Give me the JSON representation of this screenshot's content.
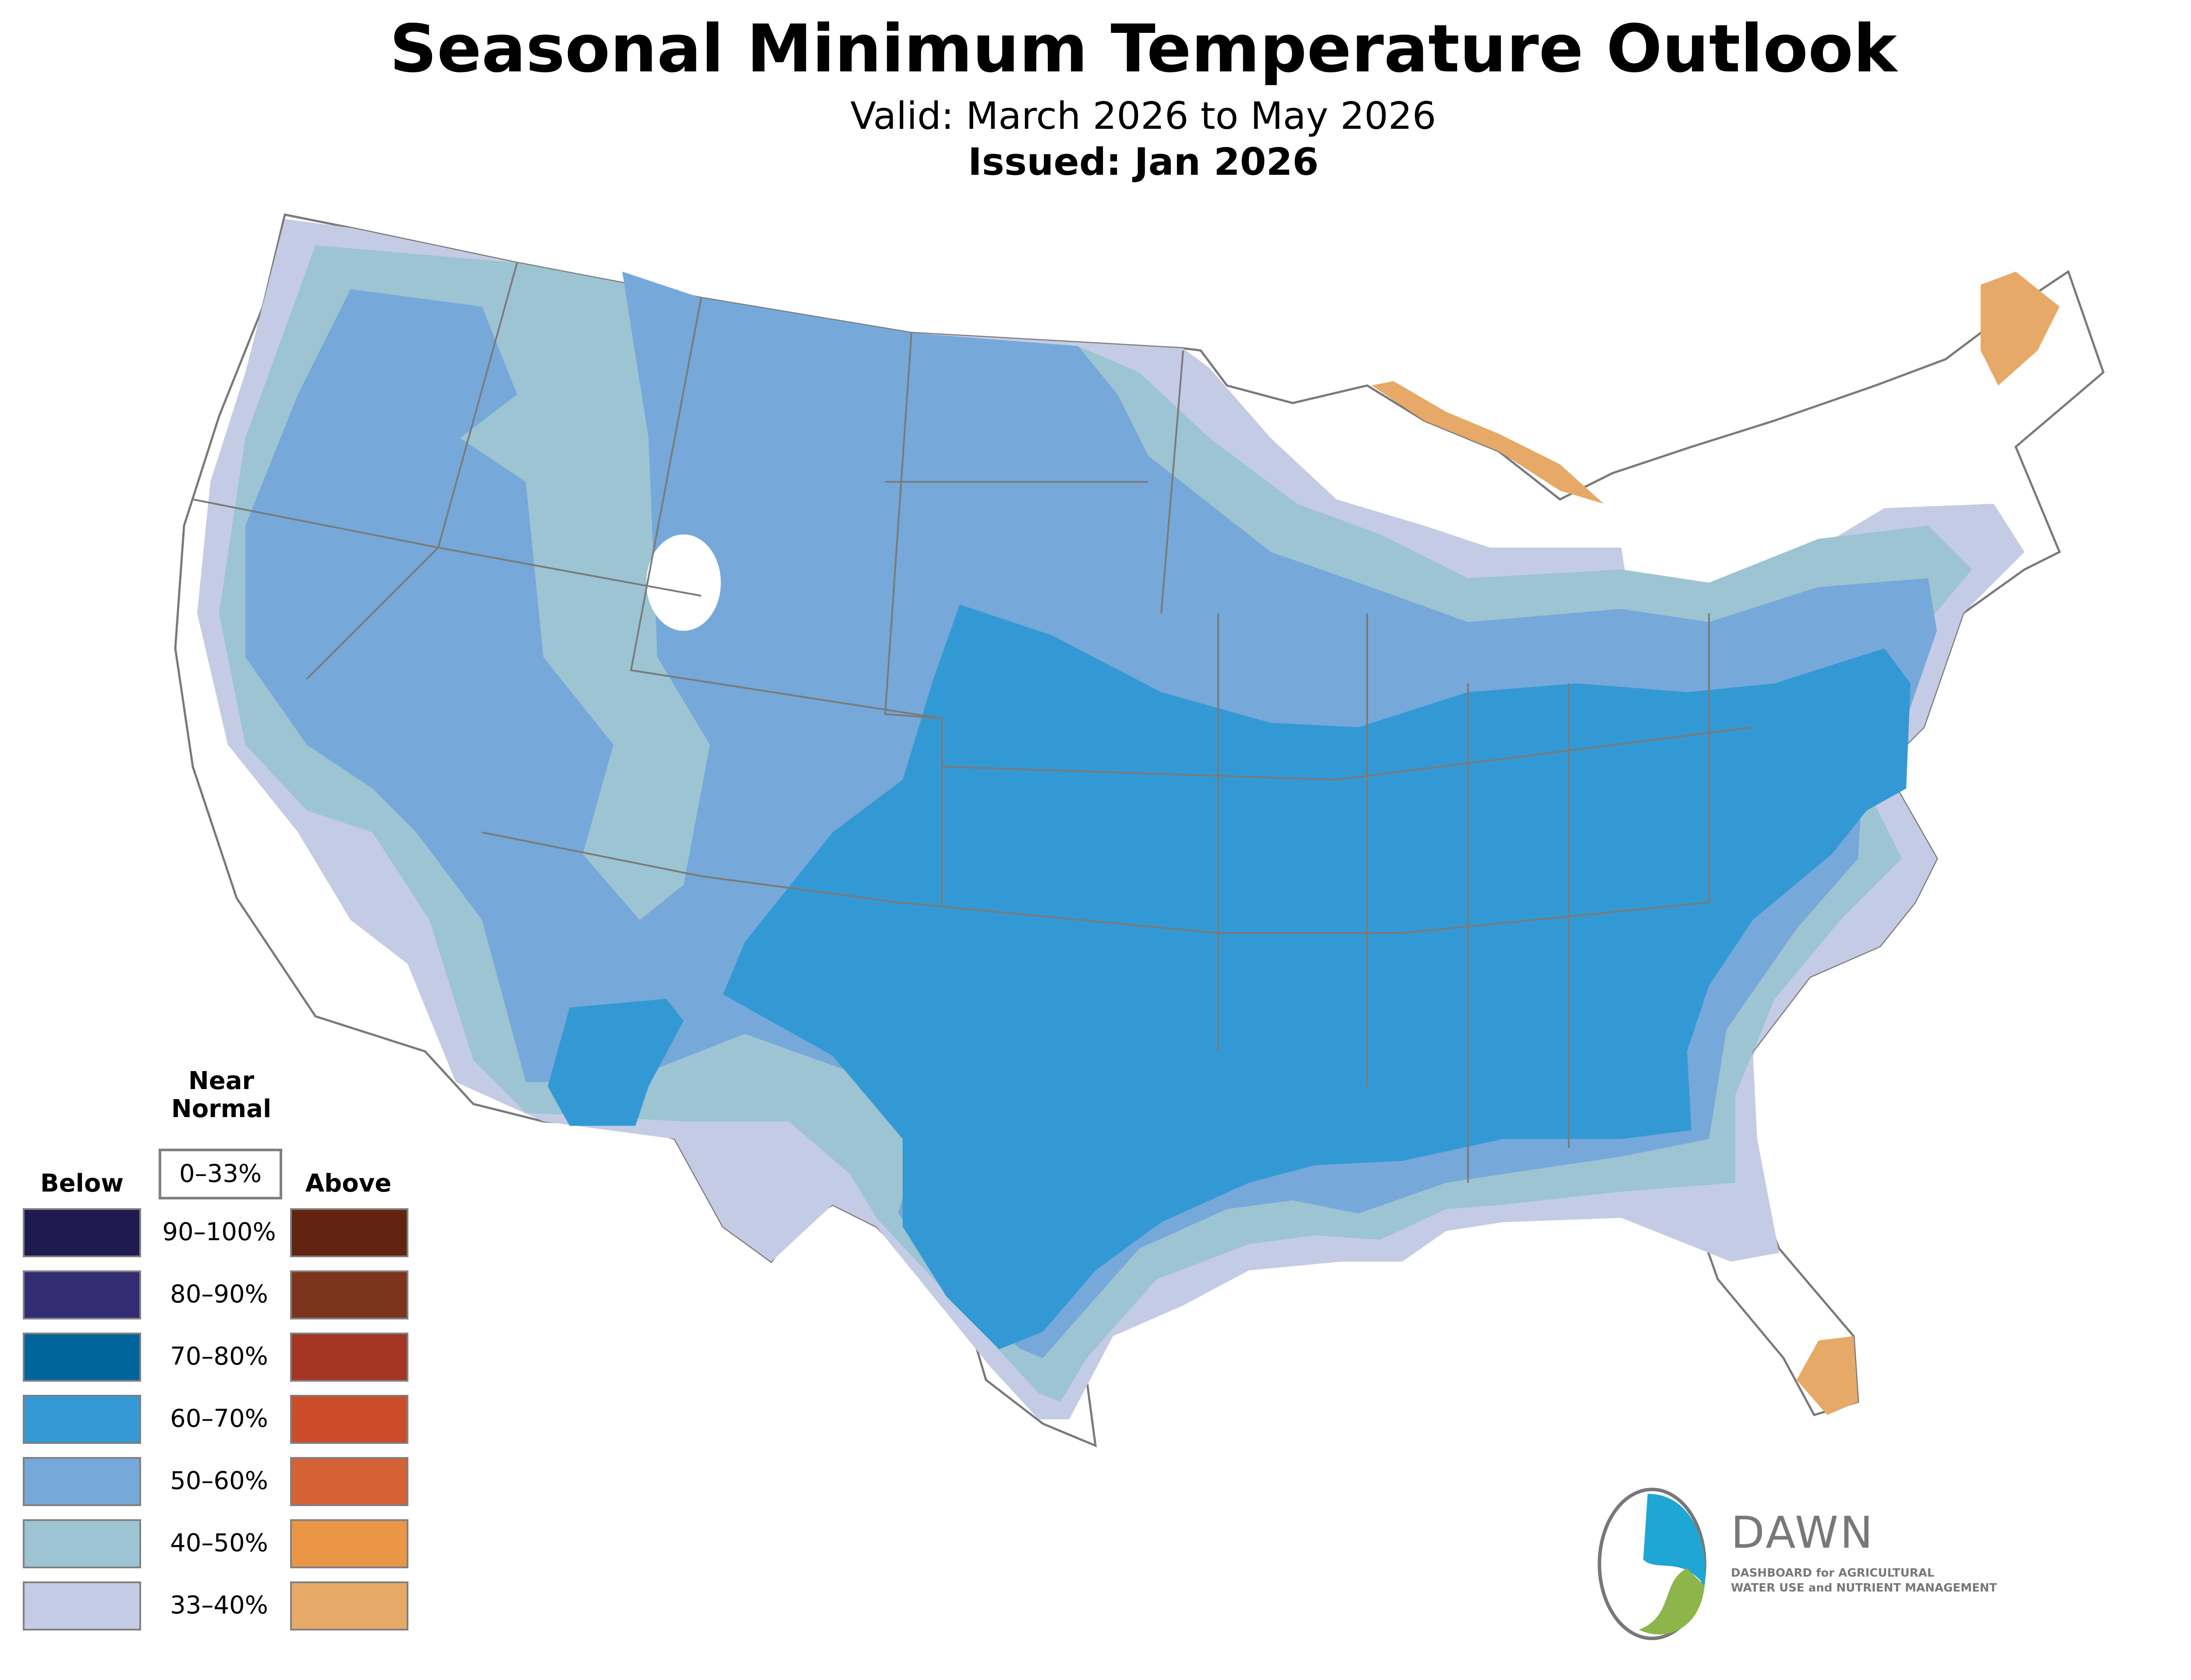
{
  "header": {
    "title": "Seasonal Minimum Temperature Outlook",
    "valid": "Valid: March 2026 to May 2026",
    "issued": "Issued: Jan 2026"
  },
  "legend": {
    "below_label": "Below",
    "near_normal_label_line1": "Near",
    "near_normal_label_line2": "Normal",
    "near_normal_range": "0–33%",
    "above_label": "Above",
    "rows": [
      {
        "range": "90–100%",
        "below_color": "#1f1a50",
        "above_color": "#622410"
      },
      {
        "range": "80–90%",
        "below_color": "#332c73",
        "above_color": "#7d341d"
      },
      {
        "range": "70–80%",
        "below_color": "#00659b",
        "above_color": "#a43424"
      },
      {
        "range": "60–70%",
        "below_color": "#3399d4",
        "above_color": "#cb4c29"
      },
      {
        "range": "50–60%",
        "below_color": "#76a8da",
        "above_color": "#d46234"
      },
      {
        "range": "40–50%",
        "below_color": "#9cc4d2",
        "above_color": "#eb9547"
      },
      {
        "range": "33–40%",
        "below_color": "#c4cbe4",
        "above_color": "#e6a967"
      }
    ]
  },
  "map": {
    "colors": {
      "below_60_70": "#3399d4",
      "below_50_60": "#76a8da",
      "below_40_50": "#9cc4d2",
      "below_33_40": "#c4cbe4",
      "above_33_40": "#e6a967",
      "above_40_50": "#eb9547",
      "border": "#7a7a7a"
    }
  },
  "logo": {
    "name": "DAWN",
    "tagline_line1": "DASHBOARD for AGRICULTURAL",
    "tagline_line2": "WATER USE and NUTRIENT MANAGEMENT",
    "colors": {
      "blue": "#1fa6d4",
      "green": "#8db64a",
      "gray": "#76787a"
    }
  }
}
